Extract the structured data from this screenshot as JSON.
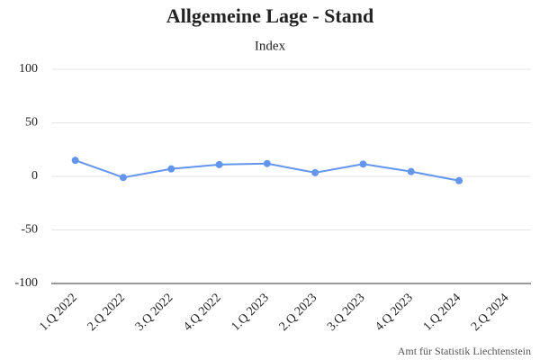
{
  "chart_data": {
    "type": "line",
    "title": "Allgemeine Lage - Stand",
    "subtitle": "Index",
    "source": "Amt für Statistik Liechtenstein",
    "categories": [
      "1.Q 2022",
      "2.Q 2022",
      "3.Q 2022",
      "4.Q 2022",
      "1.Q 2023",
      "2.Q 2023",
      "3.Q 2023",
      "4.Q 2023",
      "1.Q 2024",
      "2.Q 2024"
    ],
    "series": [
      {
        "name": "Index",
        "color": "#6495ed",
        "values": [
          15,
          -1,
          7,
          11,
          12,
          3.5,
          11.5,
          4.5,
          -4,
          null
        ]
      }
    ],
    "ylim": [
      -100,
      100
    ],
    "yticks": [
      -100,
      -50,
      0,
      50,
      100
    ],
    "grid": true
  }
}
